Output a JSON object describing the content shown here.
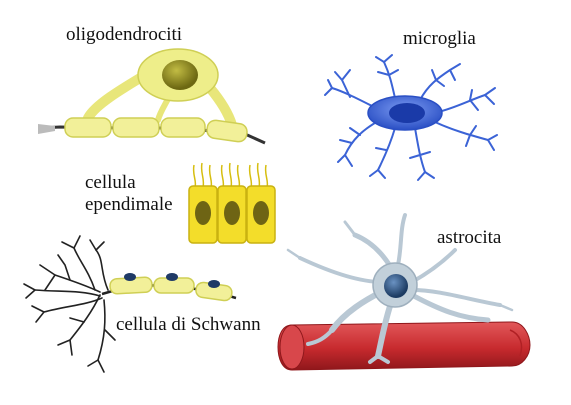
{
  "labels": {
    "oligodendrocyte": "oligodendrociti",
    "microglia": "microglia",
    "ependymal_line1": "cellula",
    "ependymal_line2": "ependimale",
    "astrocyte": "astrocita",
    "schwann": "cellula di Schwann"
  },
  "colors": {
    "myelin_yellow": "#f2f099",
    "myelin_edge": "#cfcf55",
    "nucleus_olive": "#8f8a20",
    "microglia_blue": "#3b63d6",
    "microglia_nucleus": "#1a3aa8",
    "ependymal_yellow": "#f3dd2a",
    "ependymal_nucleus": "#6e6414",
    "astro_grey": "#b9c8d4",
    "astro_nucleus": "#2b4f78",
    "vessel_red": "#cc2a2e",
    "vessel_dark": "#9e1a1e",
    "axon_dark": "#222222",
    "schwann_nucleus": "#1f3a66"
  }
}
